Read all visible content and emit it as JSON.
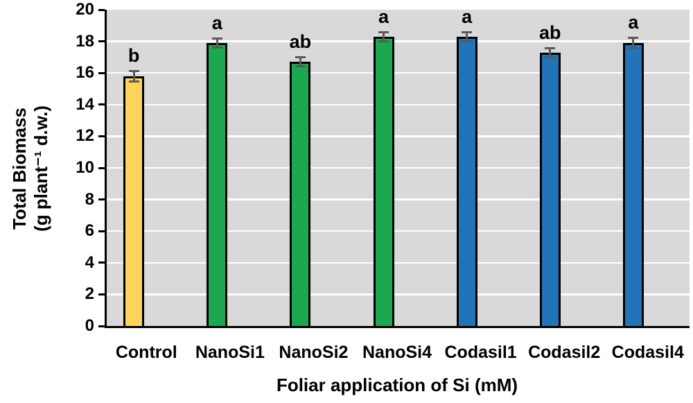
{
  "chart_data": {
    "type": "bar",
    "title": "",
    "xlabel": "Foliar application of Si (mM)",
    "ylabel_lines": [
      "Total Biomass",
      "(g plant⁻¹ d.w.)"
    ],
    "categories": [
      "Control",
      "NanoSi1",
      "NanoSi2",
      "NanoSi4",
      "Codasil1",
      "Codasil2",
      "Codasil4"
    ],
    "values": [
      15.8,
      17.9,
      16.7,
      18.3,
      18.3,
      17.3,
      17.9
    ],
    "error_bars": [
      0.4,
      0.35,
      0.35,
      0.35,
      0.35,
      0.35,
      0.4
    ],
    "significance_letters": [
      "b",
      "a",
      "ab",
      "a",
      "a",
      "ab",
      "a"
    ],
    "bar_colors": [
      "#FDD45C",
      "#1CA750",
      "#1CA750",
      "#1CA750",
      "#2273B7",
      "#2273B7",
      "#2273B7"
    ],
    "ylim": [
      0,
      20
    ],
    "ytick_interval": 2,
    "yticks": [
      0,
      2,
      4,
      6,
      8,
      10,
      12,
      14,
      16,
      18,
      20
    ],
    "grid": true,
    "legend": false,
    "colors": {
      "plot_background": "#D9D9D9",
      "gridline": "#FFFFFF",
      "axis": "#000000",
      "error_bar": "#595959",
      "text": "#000000",
      "page_background": "#FFFFFF"
    }
  }
}
